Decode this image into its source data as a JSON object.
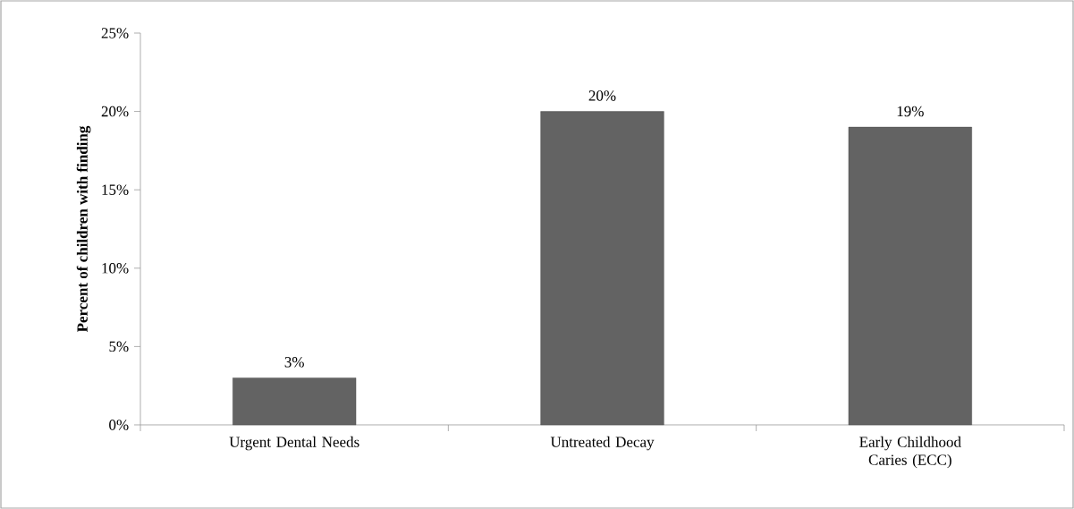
{
  "chart_data": {
    "type": "bar",
    "ylabel": "Percent of children with finding",
    "categories": [
      "Urgent Dental Needs",
      "Untreated Decay",
      "Early Childhood Caries (ECC)"
    ],
    "values": [
      3,
      20,
      19
    ],
    "value_labels": [
      "3%",
      "20%",
      "19%"
    ],
    "color": "#636363",
    "ylim": [
      0,
      25
    ],
    "yticks": [
      {
        "value": 0,
        "label": "0%"
      },
      {
        "value": 5,
        "label": "5%"
      },
      {
        "value": 10,
        "label": "10%"
      },
      {
        "value": 15,
        "label": "15%"
      },
      {
        "value": 20,
        "label": "20%"
      },
      {
        "value": 25,
        "label": "25%"
      }
    ],
    "grid": false
  }
}
